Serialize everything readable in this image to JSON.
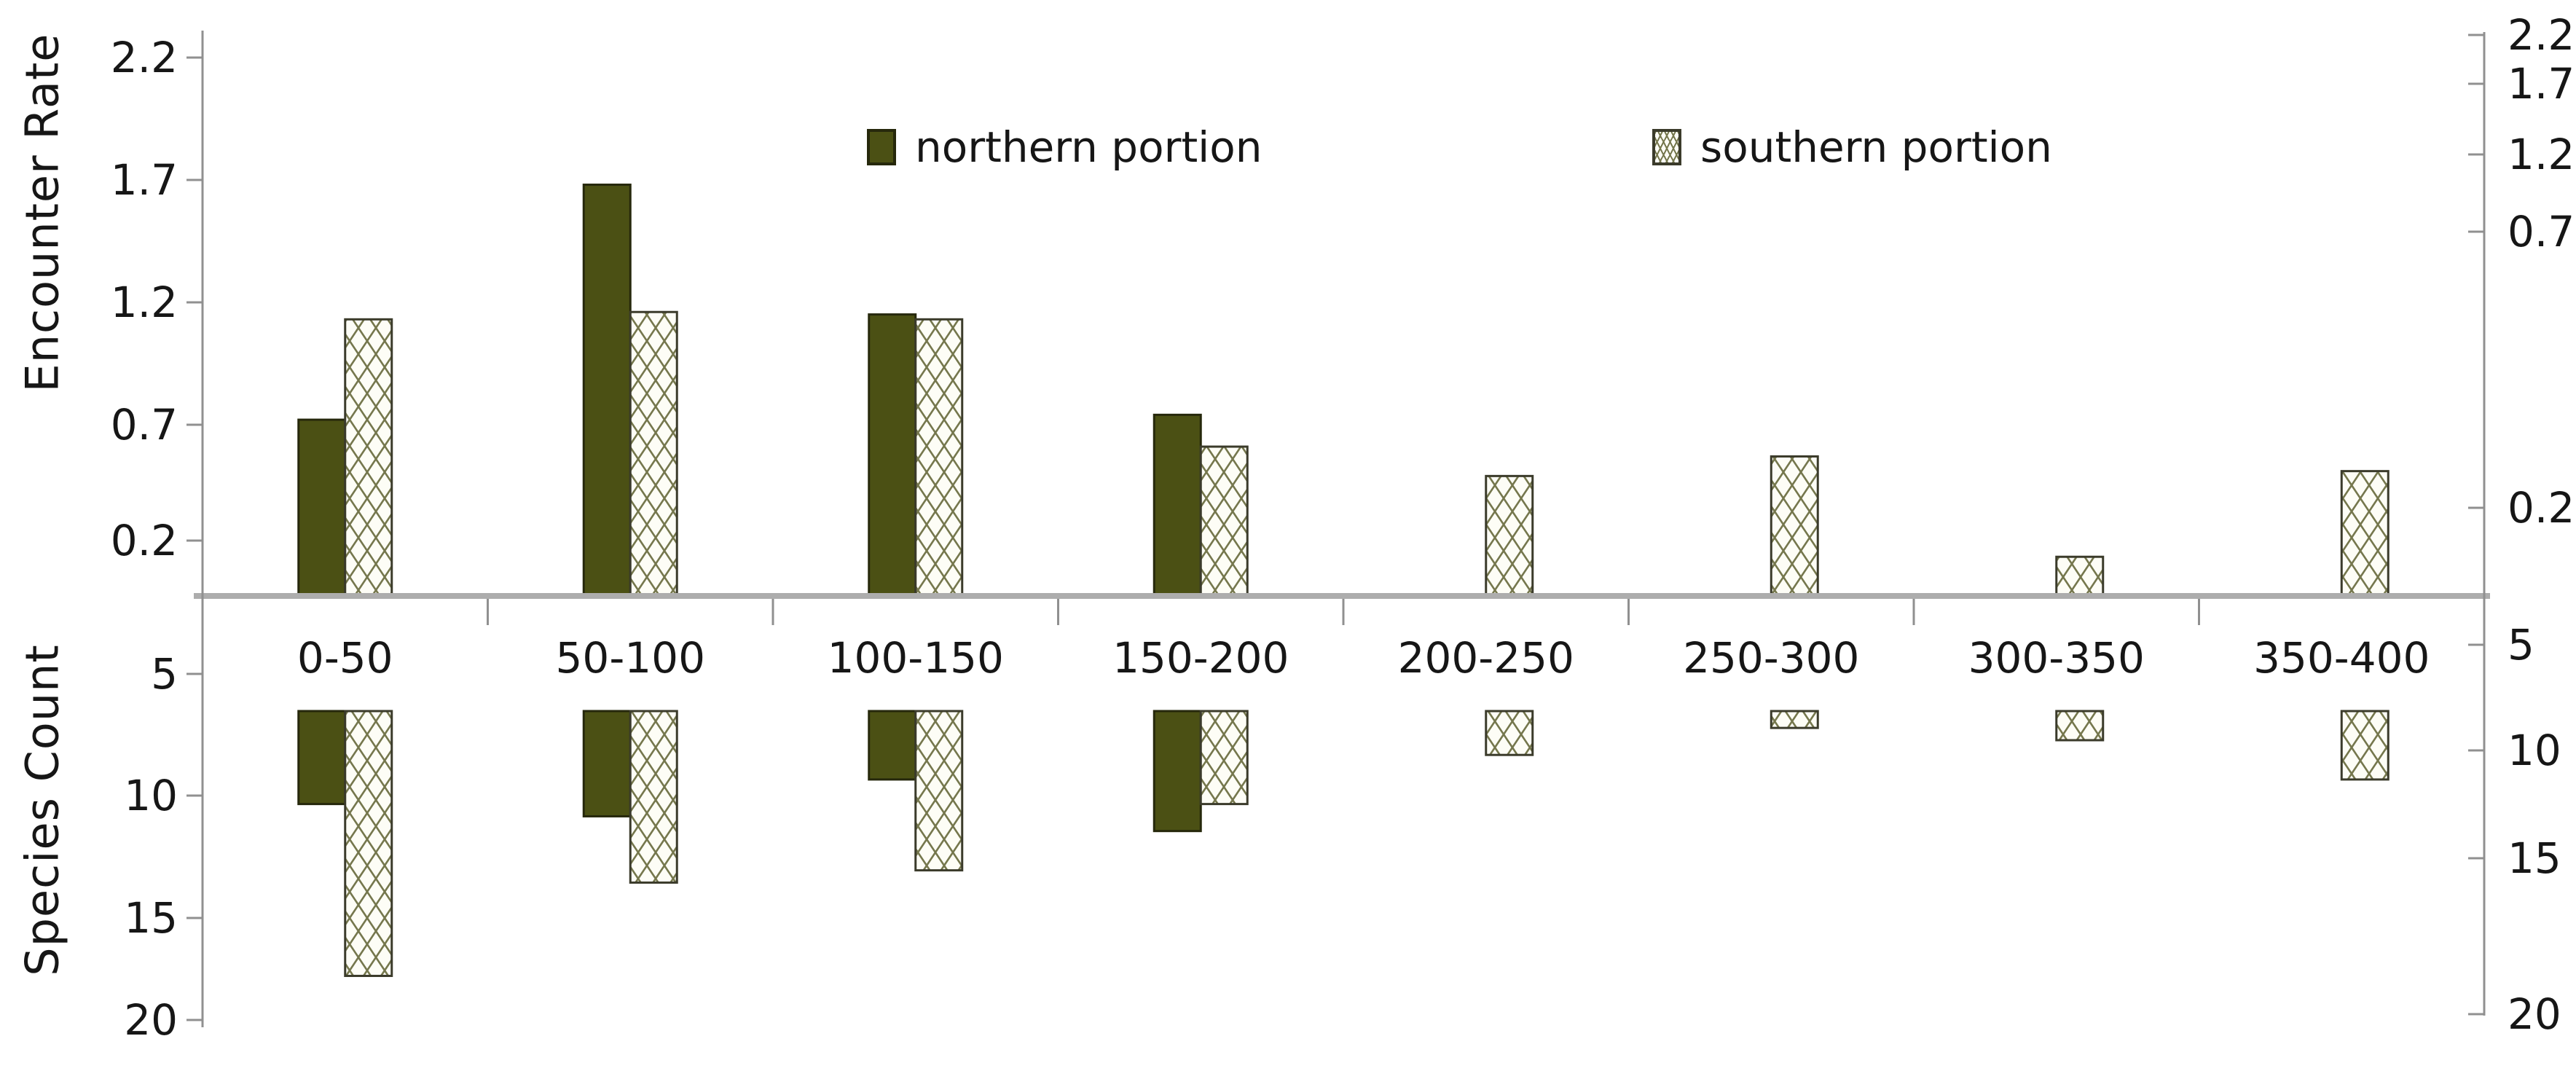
{
  "axes": {
    "encounter_title": "Encounter Rate",
    "species_title": "Species Count"
  },
  "legend": {
    "items": [
      {
        "label": "northern portion",
        "swatch": "solid"
      },
      {
        "label": "southern portion",
        "swatch": "hatched"
      }
    ]
  },
  "chart_data": {
    "type": "bar",
    "title": "",
    "categories": [
      "0-50",
      "50-100",
      "100-150",
      "150-200",
      "200-250",
      "250-300",
      "300-350",
      "350-400"
    ],
    "legend_position": "top-center",
    "grid": false,
    "panels": [
      {
        "id": "encounter_rate",
        "ylabel": "Encounter Rate",
        "orientation": "up",
        "ylim": [
          0,
          2.4
        ],
        "yticks": [
          "2.2",
          "1.7",
          "1.2",
          "0.7",
          "0.2"
        ],
        "series": [
          {
            "name": "northern portion",
            "values": [
              0.72,
              1.68,
              1.15,
              0.74,
              null,
              null,
              null,
              null
            ]
          },
          {
            "name": "southern portion",
            "values": [
              1.13,
              1.16,
              1.13,
              0.61,
              0.49,
              0.57,
              0.16,
              0.51
            ]
          }
        ]
      },
      {
        "id": "species_count",
        "ylabel": "Species Count",
        "orientation": "down",
        "ylim": [
          5,
          20
        ],
        "yticks": [
          "5",
          "10",
          "15",
          "20"
        ],
        "baseline_value": 6.5,
        "series": [
          {
            "name": "northern portion",
            "values": [
              10.3,
              10.8,
              9.3,
              11.4,
              null,
              null,
              null,
              null
            ]
          },
          {
            "name": "southern portion",
            "values": [
              17.3,
              13.5,
              13.0,
              10.3,
              8.3,
              7.2,
              7.7,
              9.3
            ]
          }
        ]
      }
    ],
    "colors": {
      "northern": "#4b5014",
      "northern_border": "#26280c",
      "southern_fill": "#fdfdf6",
      "southern_hatch": "#75774d",
      "southern_border": "#3b3b2b",
      "axis_line": "#909090",
      "baseline": "#adadad",
      "text": "#161616"
    }
  }
}
